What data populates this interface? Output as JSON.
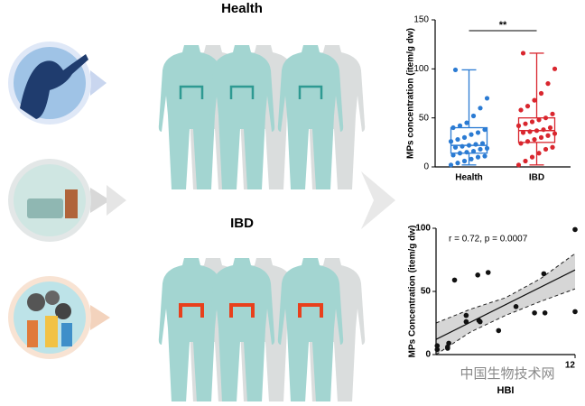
{
  "figure": {
    "health_label": "Health",
    "ibd_label": "IBD",
    "watermark": "中国生物技术网"
  },
  "chart_data": [
    {
      "type": "box",
      "ylabel": "MPs concentration (item/g dw)",
      "annotation": "**",
      "ylim": [
        0,
        150
      ],
      "yticks": [
        0,
        50,
        100,
        150
      ],
      "series": [
        {
          "name": "Health",
          "color": "#2b7bd3",
          "min": 2,
          "q1": 14,
          "median": 22,
          "q3": 40,
          "max": 99,
          "points": [
            2,
            4,
            6,
            8,
            10,
            11,
            12,
            14,
            15,
            16,
            18,
            19,
            20,
            21,
            22,
            23,
            24,
            26,
            28,
            30,
            33,
            35,
            38,
            40,
            42,
            45,
            52,
            60,
            70,
            99
          ]
        },
        {
          "name": "IBD",
          "color": "#d9262e",
          "min": 2,
          "q1": 25,
          "median": 37,
          "q3": 50,
          "max": 116,
          "points": [
            2,
            6,
            10,
            14,
            18,
            20,
            24,
            26,
            28,
            30,
            32,
            34,
            35,
            36,
            37,
            38,
            40,
            42,
            44,
            46,
            48,
            50,
            54,
            58,
            62,
            68,
            75,
            85,
            100,
            116
          ]
        }
      ]
    },
    {
      "type": "scatter",
      "xlabel": "HBI",
      "ylabel": "MPs Concentration (item/g dw)",
      "annotation": "r = 0.72, p = 0.0007",
      "xlim": [
        0,
        12
      ],
      "xticks": [
        12
      ],
      "ylim": [
        0,
        100
      ],
      "yticks": [
        0,
        50,
        100
      ],
      "color": "#111111",
      "x": [
        0.1,
        0.1,
        1,
        1,
        1.1,
        1.6,
        2.6,
        2.6,
        3.7,
        3.8,
        3.6,
        4.5,
        5.4,
        6.9,
        8.5,
        9.3,
        9.4,
        12,
        12
      ],
      "values": [
        4,
        7,
        6,
        5,
        9,
        59,
        31,
        26,
        27,
        26,
        63,
        65,
        19,
        38,
        33,
        64,
        33,
        99,
        34
      ],
      "fit_line": {
        "x": [
          0,
          12
        ],
        "y": [
          12,
          67
        ]
      },
      "ci": {
        "x": [
          0,
          3,
          6,
          9,
          12
        ],
        "upper": [
          25,
          36,
          45,
          60,
          80
        ],
        "lower": [
          0,
          18,
          31,
          42,
          52
        ]
      }
    }
  ]
}
